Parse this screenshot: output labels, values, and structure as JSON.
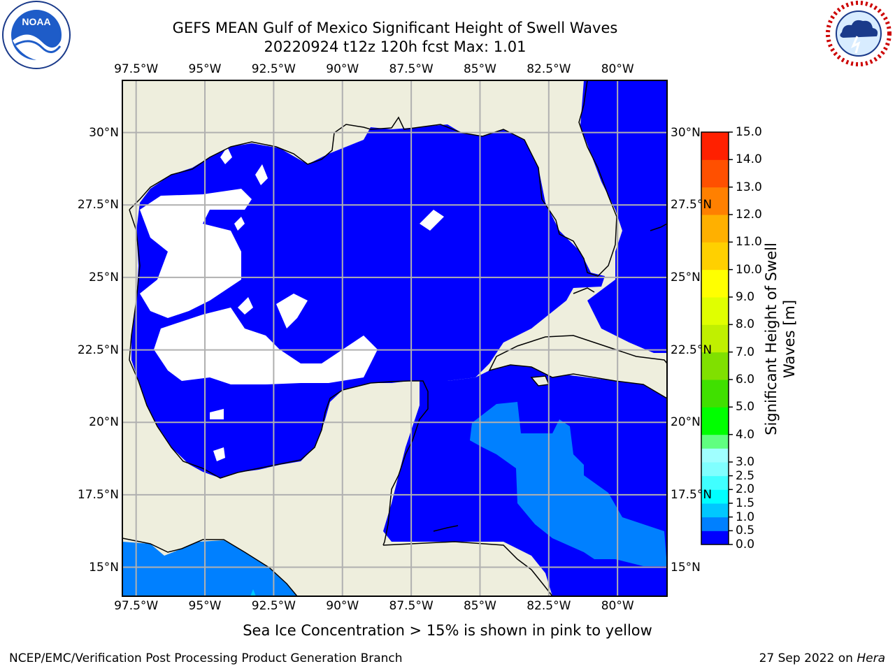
{
  "header": {
    "title_line1": "GEFS MEAN Gulf of Mexico Significant Height of Swell Waves",
    "title_line2": "20220924 t12z 120h fcst   Max: 1.01"
  },
  "logos": {
    "left": {
      "name": "noaa-logo",
      "text": "NOAA",
      "ring_text": "NATIONAL OCEANIC AND ATMOSPHERIC ADMINISTRATION · U.S. DEPARTMENT OF COMMERCE"
    },
    "right": {
      "name": "nws-logo",
      "ring_text": "NATIONAL WEATHER SERVICE"
    }
  },
  "map": {
    "lon_range": [
      -98.0,
      -78.2
    ],
    "lat_range": [
      14.0,
      31.8
    ],
    "lon_ticks": [
      {
        "value": -97.5,
        "label": "97.5°W"
      },
      {
        "value": -95,
        "label": "95°W"
      },
      {
        "value": -92.5,
        "label": "92.5°W"
      },
      {
        "value": -90,
        "label": "90°W"
      },
      {
        "value": -87.5,
        "label": "87.5°W"
      },
      {
        "value": -85,
        "label": "85°W"
      },
      {
        "value": -82.5,
        "label": "82.5°W"
      },
      {
        "value": -80,
        "label": "80°W"
      }
    ],
    "lat_ticks": [
      {
        "value": 30,
        "label": "30°N"
      },
      {
        "value": 27.5,
        "label": "27.5°N"
      },
      {
        "value": 25,
        "label": "25°N"
      },
      {
        "value": 22.5,
        "label": "22.5°N"
      },
      {
        "value": 20,
        "label": "20°N"
      },
      {
        "value": 17.5,
        "label": "17.5°N"
      },
      {
        "value": 15,
        "label": "15°N"
      }
    ],
    "colors": {
      "land": "#eeeedd",
      "ocean_lowest": "#0000ff",
      "ocean_second": "#0080ff",
      "nodata": "#ffffff",
      "grid": "#b0b0b0"
    }
  },
  "colorbar": {
    "label_line1": "Significant Height of Swell",
    "label_line2": "Waves [m]",
    "levels": [
      {
        "value": "0.0",
        "color": "#0000ff"
      },
      {
        "value": "0.5",
        "color": "#0080ff"
      },
      {
        "value": "1.0",
        "color": "#00c8ff"
      },
      {
        "value": "1.5",
        "color": "#00ffff"
      },
      {
        "value": "2.0",
        "color": "#40ffff"
      },
      {
        "value": "2.5",
        "color": "#80ffff"
      },
      {
        "value": "3.0",
        "color": "#a0ffff"
      },
      {
        "value": "3.5",
        "color": "#60ff80"
      },
      {
        "value": "4.0",
        "color": "#00ff00"
      },
      {
        "value": "5.0",
        "color": "#40e000"
      },
      {
        "value": "6.0",
        "color": "#80e000"
      },
      {
        "value": "7.0",
        "color": "#c0f000"
      },
      {
        "value": "8.0",
        "color": "#e0ff00"
      },
      {
        "value": "9.0",
        "color": "#ffff00"
      },
      {
        "value": "10.0",
        "color": "#ffd000"
      },
      {
        "value": "11.0",
        "color": "#ffb000"
      },
      {
        "value": "12.0",
        "color": "#ff8000"
      },
      {
        "value": "13.0",
        "color": "#ff5000"
      },
      {
        "value": "14.0",
        "color": "#ff2000"
      },
      {
        "value": "15.0",
        "color": "#ff0000"
      }
    ],
    "tick_labels": [
      "0.0",
      "0.5",
      "1.0",
      "1.5",
      "2.0",
      "2.5",
      "3.0",
      "4.0",
      "5.0",
      "6.0",
      "7.0",
      "8.0",
      "9.0",
      "10.0",
      "11.0",
      "12.0",
      "13.0",
      "14.0",
      "15.0"
    ]
  },
  "note": "Sea Ice Concentration > 15% is shown in pink to yellow",
  "footer": {
    "left": "NCEP/EMC/Verification Post Processing Product Generation Branch",
    "right_prefix": "27 Sep 2022 on ",
    "right_host": "Hera"
  }
}
